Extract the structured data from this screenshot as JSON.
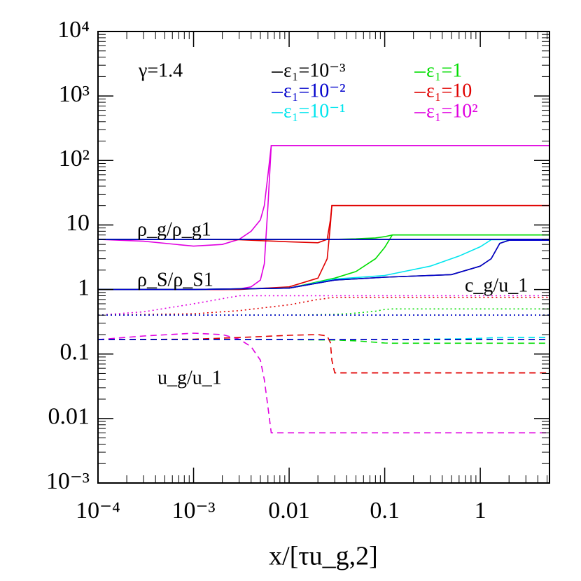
{
  "chart_data": {
    "type": "line",
    "xlabel": "x/[τu_g,2]",
    "annotations": [
      "γ=1.4",
      "ρ_g/ρ_g1",
      "ρ_S/ρ_S1",
      "c_g/u_1",
      "u_g/u_1"
    ],
    "xlog": true,
    "ylog": true,
    "xlim": [
      0.0001,
      5.3
    ],
    "ylim": [
      0.001,
      10000
    ],
    "xticks": [
      {
        "value": 0.0001,
        "label": "10⁻⁴"
      },
      {
        "value": 0.001,
        "label": "10⁻³"
      },
      0.01,
      0.1,
      1
    ],
    "yticks": [
      {
        "value": 0.001,
        "label": "10⁻³"
      },
      0.01,
      0.1,
      1,
      10,
      {
        "value": 100,
        "label": "10²"
      },
      {
        "value": 1000,
        "label": "10³"
      },
      {
        "value": 10000,
        "label": "10⁴"
      }
    ],
    "series": [
      {
        "name": "ε₁=10²",
        "color": "#e000e0",
        "x": [
          0.0001,
          0.0003,
          0.001,
          0.002,
          0.003,
          0.004,
          0.005,
          0.0055,
          0.006,
          0.0065,
          0.01,
          5.3
        ],
        "rho_g": [
          6,
          5.6,
          4.7,
          5,
          6,
          8,
          12,
          20,
          60,
          170,
          170,
          170
        ],
        "rho_s": [
          1,
          1,
          1,
          1,
          1.02,
          1.1,
          1.4,
          2.5,
          20,
          170,
          170,
          170
        ],
        "c_g": [
          0.4,
          0.45,
          0.6,
          0.72,
          0.8,
          0.8,
          0.8,
          0.8,
          0.8,
          0.8,
          0.8,
          0.8
        ],
        "u_g": [
          0.167,
          0.19,
          0.21,
          0.2,
          0.17,
          0.13,
          0.08,
          0.04,
          0.015,
          0.006,
          0.006,
          0.006
        ]
      },
      {
        "name": "ε₁=10",
        "color": "#e00000",
        "x": [
          0.0001,
          0.001,
          0.003,
          0.01,
          0.02,
          0.025,
          0.027,
          0.028,
          0.03,
          0.1,
          5.3
        ],
        "rho_g": [
          6,
          6,
          5.9,
          5.5,
          5.3,
          6,
          12,
          20,
          20,
          20,
          20
        ],
        "rho_s": [
          1,
          1,
          1,
          1.1,
          1.5,
          3,
          10,
          20,
          20,
          20,
          20
        ],
        "c_g": [
          0.4,
          0.42,
          0.47,
          0.58,
          0.7,
          0.73,
          0.75,
          0.75,
          0.75,
          0.75,
          0.75
        ],
        "u_g": [
          0.167,
          0.17,
          0.18,
          0.195,
          0.2,
          0.19,
          0.15,
          0.08,
          0.051,
          0.051,
          0.051
        ]
      },
      {
        "name": "ε₁=1",
        "color": "#00dd00",
        "x": [
          0.0001,
          0.001,
          0.01,
          0.03,
          0.05,
          0.08,
          0.1,
          0.12,
          0.2,
          1,
          5.3
        ],
        "rho_g": [
          6,
          6,
          6,
          6,
          6.1,
          6.3,
          6.6,
          7,
          7,
          7,
          7
        ],
        "rho_s": [
          1,
          1,
          1.05,
          1.5,
          1.9,
          3,
          4.5,
          7,
          7,
          7,
          7
        ],
        "c_g": [
          0.4,
          0.4,
          0.4,
          0.41,
          0.43,
          0.46,
          0.49,
          0.5,
          0.5,
          0.5,
          0.5
        ],
        "u_g": [
          0.167,
          0.167,
          0.167,
          0.165,
          0.16,
          0.152,
          0.148,
          0.147,
          0.147,
          0.147,
          0.147
        ]
      },
      {
        "name": "ε₁=10⁻¹",
        "color": "#00e5ee",
        "x": [
          0.0001,
          0.001,
          0.01,
          0.03,
          0.1,
          0.3,
          0.6,
          1,
          1.3,
          2,
          5.3
        ],
        "rho_g": [
          6,
          6,
          6,
          6,
          6,
          6,
          6,
          6,
          6,
          6,
          6
        ],
        "rho_s": [
          1,
          1,
          1.05,
          1.45,
          1.65,
          2.3,
          3.3,
          4.6,
          5.9,
          5.9,
          5.9
        ],
        "c_g": [
          0.4,
          0.4,
          0.4,
          0.4,
          0.4,
          0.4,
          0.4,
          0.4,
          0.4,
          0.4,
          0.4
        ],
        "u_g": [
          0.167,
          0.167,
          0.167,
          0.167,
          0.167,
          0.17,
          0.172,
          0.175,
          0.178,
          0.18,
          0.18
        ]
      },
      {
        "name": "ε₁=10⁻³",
        "color": "#000000",
        "x": [
          0.0001,
          0.001,
          0.01,
          0.03,
          0.1,
          0.5,
          1,
          1.3,
          1.6,
          2,
          5.3
        ],
        "rho_g": [
          6,
          6,
          6,
          6,
          6,
          6,
          6,
          6,
          6,
          6,
          6
        ],
        "rho_s": [
          1,
          1,
          1.05,
          1.4,
          1.55,
          1.7,
          2.3,
          3,
          5.2,
          5.8,
          5.8
        ],
        "c_g": [
          0.4,
          0.4,
          0.4,
          0.4,
          0.4,
          0.4,
          0.4,
          0.4,
          0.4,
          0.4,
          0.4
        ],
        "u_g": [
          0.167,
          0.167,
          0.167,
          0.167,
          0.167,
          0.167,
          0.167,
          0.167,
          0.167,
          0.167,
          0.167
        ]
      },
      {
        "name": "ε₁=10⁻²",
        "color": "#0000cc",
        "x": [
          0.0001,
          0.001,
          0.01,
          0.03,
          0.1,
          0.5,
          1,
          1.3,
          1.6,
          2,
          5.3
        ],
        "rho_g": [
          6,
          6,
          6,
          6,
          6,
          6,
          6,
          6,
          6,
          6,
          6
        ],
        "rho_s": [
          1,
          1,
          1.05,
          1.4,
          1.55,
          1.7,
          2.3,
          3,
          5.2,
          5.8,
          5.8
        ],
        "c_g": [
          0.4,
          0.4,
          0.4,
          0.4,
          0.4,
          0.4,
          0.4,
          0.4,
          0.4,
          0.4,
          0.4
        ],
        "u_g": [
          0.167,
          0.167,
          0.167,
          0.167,
          0.167,
          0.167,
          0.167,
          0.167,
          0.167,
          0.167,
          0.167
        ]
      }
    ]
  }
}
